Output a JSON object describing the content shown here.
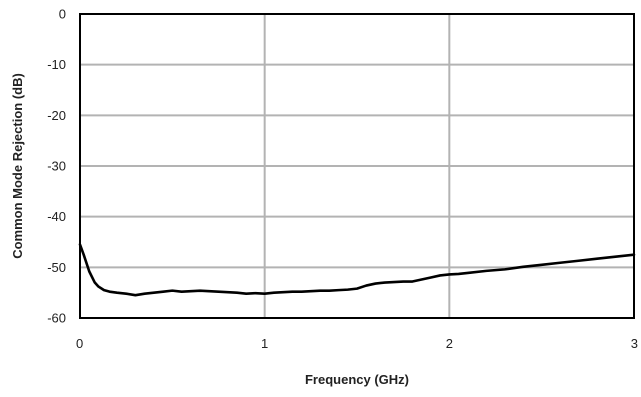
{
  "chart_data": {
    "type": "line",
    "title": "",
    "xlabel": "Frequency (GHz)",
    "ylabel": "Common Mode Rejection (dB)",
    "xlim": [
      0,
      3
    ],
    "ylim": [
      -60,
      0
    ],
    "x_ticks": [
      "0",
      "1",
      "2",
      "3"
    ],
    "y_ticks": [
      "0",
      "-10",
      "-20",
      "-30",
      "-40",
      "-50",
      "-60"
    ],
    "grid": true,
    "legend": "none",
    "line_color": "#000000",
    "gridline_color": "#b3b3b3",
    "series": [
      {
        "x": [
          0.0,
          0.02,
          0.05,
          0.08,
          0.1,
          0.13,
          0.16,
          0.2,
          0.25,
          0.3,
          0.35,
          0.4,
          0.45,
          0.5,
          0.55,
          0.6,
          0.65,
          0.7,
          0.75,
          0.8,
          0.85,
          0.9,
          0.95,
          1.0,
          1.05,
          1.1,
          1.15,
          1.2,
          1.25,
          1.3,
          1.35,
          1.4,
          1.45,
          1.5,
          1.55,
          1.6,
          1.65,
          1.7,
          1.75,
          1.8,
          1.85,
          1.9,
          1.95,
          2.0,
          2.05,
          2.1,
          2.2,
          2.3,
          2.4,
          2.5,
          2.6,
          2.7,
          2.8,
          2.9,
          3.0
        ],
        "y": [
          -45.5,
          -47.5,
          -50.8,
          -53.0,
          -53.8,
          -54.5,
          -54.8,
          -55.0,
          -55.2,
          -55.5,
          -55.2,
          -55.0,
          -54.8,
          -54.6,
          -54.8,
          -54.7,
          -54.6,
          -54.7,
          -54.8,
          -54.9,
          -55.0,
          -55.2,
          -55.1,
          -55.2,
          -55.0,
          -54.9,
          -54.8,
          -54.8,
          -54.7,
          -54.6,
          -54.6,
          -54.5,
          -54.4,
          -54.2,
          -53.6,
          -53.2,
          -53.0,
          -52.9,
          -52.8,
          -52.8,
          -52.4,
          -52.0,
          -51.6,
          -51.4,
          -51.3,
          -51.1,
          -50.7,
          -50.4,
          -49.9,
          -49.5,
          -49.1,
          -48.7,
          -48.3,
          -47.9,
          -47.5
        ]
      }
    ]
  }
}
